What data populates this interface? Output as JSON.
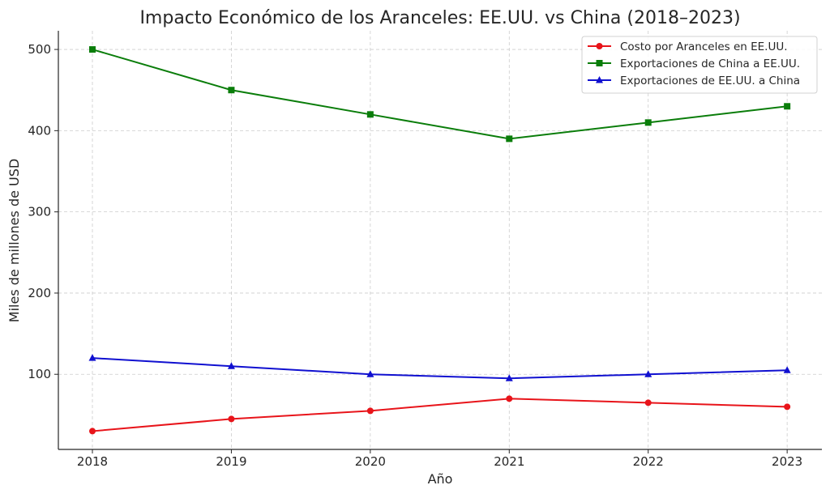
{
  "chart_data": {
    "type": "line",
    "title": "Impacto Económico de los Aranceles: EE.UU. vs China (2018–2023)",
    "xlabel": "Año",
    "ylabel": "Miles de millones de USD",
    "x": [
      2018,
      2019,
      2020,
      2021,
      2022,
      2023
    ],
    "xlim": [
      2017.755,
      2023.25
    ],
    "ylim": [
      7.5,
      523
    ],
    "yticks": [
      100,
      200,
      300,
      400,
      500
    ],
    "grid": true,
    "legend_position": "top-right",
    "series": [
      {
        "name": "Costo por Aranceles en EE.UU.",
        "color": "#e8141a",
        "marker": "circle",
        "values": [
          30,
          45,
          55,
          70,
          65,
          60
        ]
      },
      {
        "name": "Exportaciones de China a EE.UU.",
        "color": "#0a7d0a",
        "marker": "square",
        "values": [
          500,
          450,
          420,
          390,
          410,
          430
        ]
      },
      {
        "name": "Exportaciones de EE.UU. a China",
        "color": "#1010d0",
        "marker": "triangle",
        "values": [
          120,
          110,
          100,
          95,
          100,
          105
        ]
      }
    ]
  }
}
